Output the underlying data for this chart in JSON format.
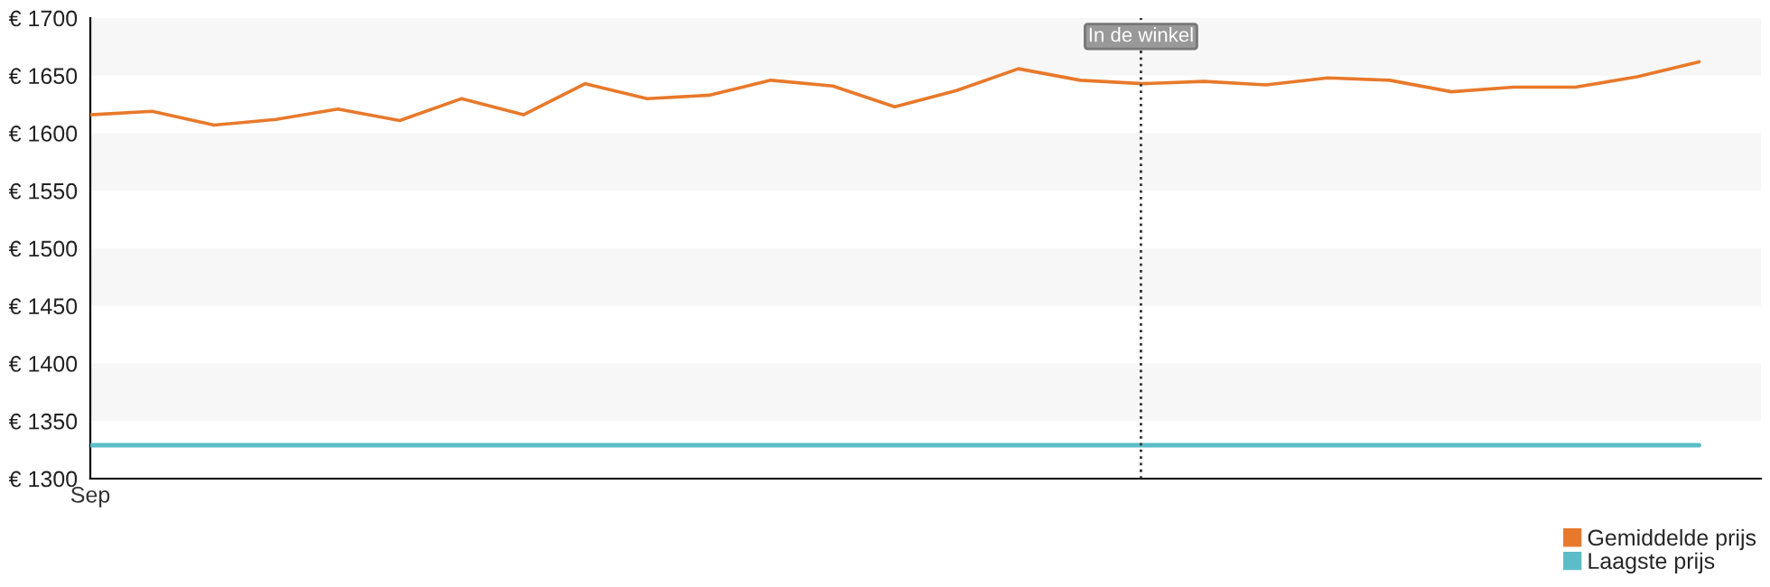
{
  "chart_data": {
    "type": "line",
    "categories": [
      "Sep",
      null,
      null,
      null,
      null,
      null,
      null,
      null,
      null,
      null,
      null,
      null,
      null,
      null,
      null,
      null,
      null,
      null,
      null,
      null,
      null,
      null,
      null,
      null,
      null,
      null,
      null,
      null
    ],
    "series": [
      {
        "name": "Gemiddelde prijs",
        "color": "#e8792b",
        "values": [
          1616,
          1619,
          1607,
          1612,
          1621,
          1611,
          1630,
          1616,
          1643,
          1630,
          1633,
          1646,
          1641,
          1623,
          1637,
          1656,
          1646,
          1643,
          1645,
          1642,
          1648,
          1646,
          1636,
          1640,
          1640,
          1649,
          1662,
          null
        ]
      },
      {
        "name": "Laagste prijs",
        "color": "#5bbdc8",
        "values": [
          1329,
          1329,
          1329,
          1329,
          1329,
          1329,
          1329,
          1329,
          1329,
          1329,
          1329,
          1329,
          1329,
          1329,
          1329,
          1329,
          1329,
          1329,
          1329,
          1329,
          1329,
          1329,
          1329,
          1329,
          1329,
          1329,
          1329,
          null
        ]
      }
    ],
    "ylim": [
      1300,
      1700
    ],
    "yticks": [
      {
        "value": 1300,
        "label": "€ 1300"
      },
      {
        "value": 1350,
        "label": "€ 1350"
      },
      {
        "value": 1400,
        "label": "€ 1400"
      },
      {
        "value": 1450,
        "label": "€ 1450"
      },
      {
        "value": 1500,
        "label": "€ 1500"
      },
      {
        "value": 1550,
        "label": "€ 1550"
      },
      {
        "value": 1600,
        "label": "€ 1600"
      },
      {
        "value": 1650,
        "label": "€ 1650"
      },
      {
        "value": 1700,
        "label": "€ 1700"
      }
    ],
    "annotations": [
      "In de winkel"
    ],
    "bands": [
      {
        "axis": "y",
        "from": 1650,
        "to": 1700,
        "color": "#f7f7f7"
      },
      {
        "axis": "y",
        "from": 1550,
        "to": 1600,
        "color": "#f7f7f7"
      },
      {
        "axis": "y",
        "from": 1450,
        "to": 1500,
        "color": "#f7f7f7"
      },
      {
        "axis": "y",
        "from": 1350,
        "to": 1400,
        "color": "#f7f7f7"
      }
    ],
    "grid": false,
    "legend": "bottom right",
    "marker": "none",
    "line_style": "solid"
  }
}
